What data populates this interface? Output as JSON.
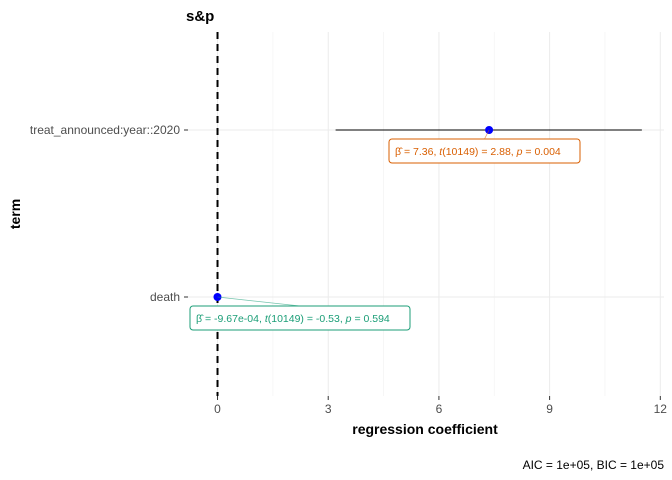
{
  "chart_data": {
    "type": "dot-whisker",
    "title": "s&p",
    "xlabel": "regression coefficient",
    "ylabel": "term",
    "xlim": [
      -0.8,
      12.1
    ],
    "x_ticks": [
      0,
      3,
      6,
      9,
      12
    ],
    "x_tick_labels": [
      "0",
      "3",
      "6",
      "9",
      "12"
    ],
    "grid": true,
    "reference_line_x": 0,
    "terms": [
      {
        "term": "treat_announced:year::2020",
        "estimate": 7.36,
        "ci_low": 3.2,
        "ci_high": 11.5,
        "label_beta": "= 7.36,",
        "label_t": "(10149) = 2.88,",
        "label_p": "= 0.004",
        "color": "#d95f02"
      },
      {
        "term": "death",
        "estimate": -0.000967,
        "ci_low": -0.0045,
        "ci_high": 0.0026,
        "label_beta": "= -9.67e-04,",
        "label_t": "(10149) = -0.53,",
        "label_p": "= 0.594",
        "color": "#1b9e77"
      }
    ],
    "point_color": "#0000ff",
    "caption": "AIC = 1e+05, BIC = 1e+05"
  }
}
